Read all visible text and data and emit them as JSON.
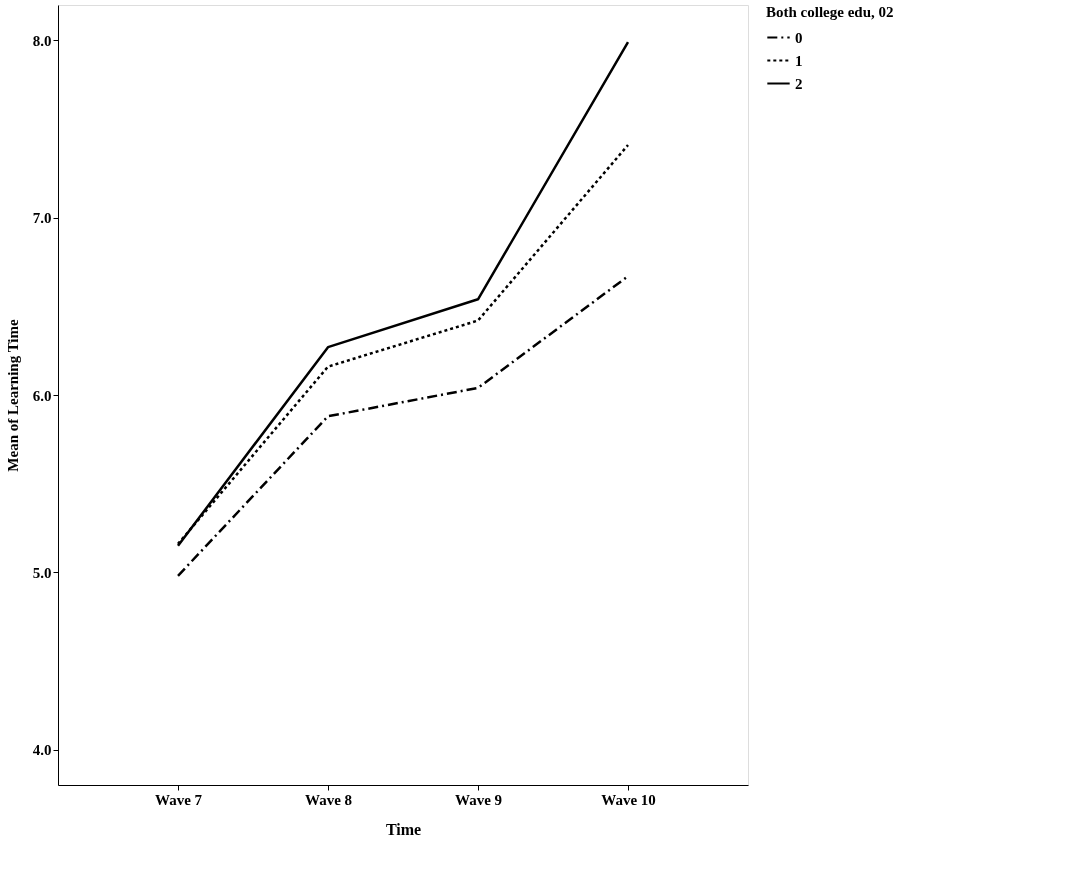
{
  "chart_data": {
    "type": "line",
    "xlabel": "Time",
    "ylabel": "Mean of Learning Time",
    "legend_title": "Both college edu, 02",
    "categories": [
      "Wave 7",
      "Wave 8",
      "Wave 9",
      "Wave 10"
    ],
    "series": [
      {
        "name": "0",
        "color": "#000000",
        "line_style": "dashed",
        "values": [
          4.98,
          5.88,
          6.04,
          6.67
        ]
      },
      {
        "name": "1",
        "color": "#000000",
        "line_style": "dotted",
        "values": [
          5.16,
          6.16,
          6.42,
          7.41
        ]
      },
      {
        "name": "2",
        "color": "#000000",
        "line_style": "solid",
        "values": [
          5.15,
          6.27,
          6.54,
          7.99
        ]
      }
    ],
    "ylim": [
      3.8,
      8.2
    ],
    "yticks": [
      {
        "value": 4,
        "label": "4.0"
      },
      {
        "value": 5,
        "label": "5.0"
      },
      {
        "value": 6,
        "label": "6.0"
      },
      {
        "value": 7,
        "label": "7.0"
      },
      {
        "value": 8,
        "label": "8.0"
      }
    ],
    "grid": false,
    "legend": "top right",
    "marker": "none"
  }
}
